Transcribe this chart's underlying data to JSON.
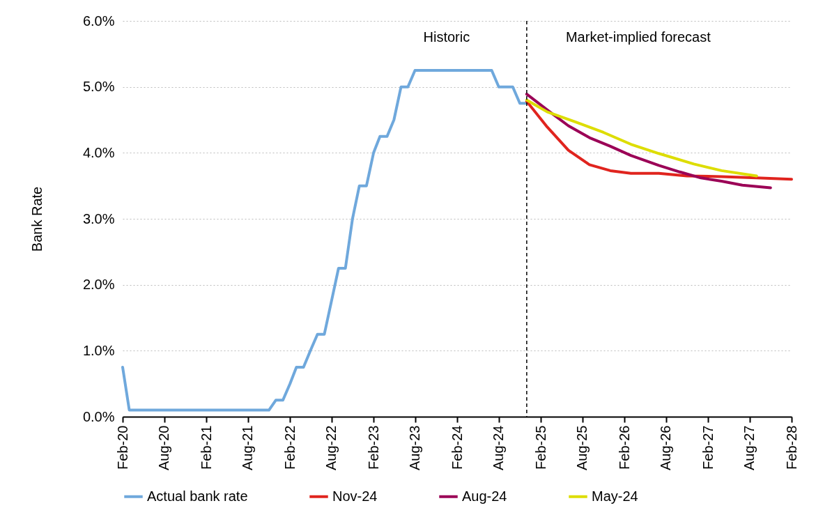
{
  "chart_data": {
    "type": "line",
    "ylabel": "Bank Rate",
    "xlim": [
      "2020-02",
      "2028-02"
    ],
    "xticks": [
      {
        "value": "2020-02",
        "label": "Feb-20"
      },
      {
        "value": "2020-08",
        "label": "Aug-20"
      },
      {
        "value": "2021-02",
        "label": "Feb-21"
      },
      {
        "value": "2021-08",
        "label": "Aug-21"
      },
      {
        "value": "2022-02",
        "label": "Feb-22"
      },
      {
        "value": "2022-08",
        "label": "Aug-22"
      },
      {
        "value": "2023-02",
        "label": "Feb-23"
      },
      {
        "value": "2023-08",
        "label": "Aug-23"
      },
      {
        "value": "2024-02",
        "label": "Feb-24"
      },
      {
        "value": "2024-08",
        "label": "Aug-24"
      },
      {
        "value": "2025-02",
        "label": "Feb-25"
      },
      {
        "value": "2025-08",
        "label": "Aug-25"
      },
      {
        "value": "2026-02",
        "label": "Feb-26"
      },
      {
        "value": "2026-08",
        "label": "Aug-26"
      },
      {
        "value": "2027-02",
        "label": "Feb-27"
      },
      {
        "value": "2027-08",
        "label": "Aug-27"
      },
      {
        "value": "2028-02",
        "label": "Feb-28"
      }
    ],
    "ylim": [
      0,
      6
    ],
    "yticks": [
      {
        "value": 0,
        "label": "0.0%"
      },
      {
        "value": 1,
        "label": "1.0%"
      },
      {
        "value": 2,
        "label": "2.0%"
      },
      {
        "value": 3,
        "label": "3.0%"
      },
      {
        "value": 4,
        "label": "4.0%"
      },
      {
        "value": 5,
        "label": "5.0%"
      },
      {
        "value": 6,
        "label": "6.0%"
      }
    ],
    "grid": "y",
    "legend": "bottom",
    "ref_lines": [
      {
        "axis": "x",
        "value": "2024-12",
        "label": null,
        "line_style": "dashed",
        "color": "#000000"
      }
    ],
    "annotations": [
      "Historic",
      "Market-implied forecast"
    ],
    "series": [
      {
        "name": "Actual bank rate",
        "color": "#6fa8dc",
        "x": [
          "2020-02",
          "2020-03",
          "2021-11",
          "2021-12",
          "2022-01",
          "2022-02",
          "2022-03",
          "2022-04",
          "2022-05",
          "2022-06",
          "2022-07",
          "2022-08",
          "2022-09",
          "2022-10",
          "2022-11",
          "2022-12",
          "2023-01",
          "2023-02",
          "2023-03",
          "2023-04",
          "2023-05",
          "2023-06",
          "2023-07",
          "2023-08",
          "2024-07",
          "2024-08",
          "2024-10",
          "2024-11",
          "2024-12"
        ],
        "values": [
          0.75,
          0.1,
          0.1,
          0.25,
          0.25,
          0.5,
          0.75,
          0.75,
          1.0,
          1.25,
          1.25,
          1.75,
          2.25,
          2.25,
          3.0,
          3.5,
          3.5,
          4.0,
          4.25,
          4.25,
          4.5,
          5.0,
          5.0,
          5.25,
          5.25,
          5.0,
          5.0,
          4.75,
          4.75
        ]
      },
      {
        "name": "Nov-24",
        "color": "#e0241e",
        "x": [
          "2024-12",
          "2025-03",
          "2025-06",
          "2025-09",
          "2025-12",
          "2026-03",
          "2026-07",
          "2026-11",
          "2027-04",
          "2027-09",
          "2028-02"
        ],
        "values": [
          4.78,
          4.39,
          4.04,
          3.82,
          3.73,
          3.69,
          3.69,
          3.65,
          3.64,
          3.62,
          3.6
        ]
      },
      {
        "name": "Aug-24",
        "color": "#9b0056",
        "x": [
          "2024-12",
          "2025-03",
          "2025-06",
          "2025-09",
          "2025-12",
          "2026-03",
          "2026-07",
          "2026-10",
          "2027-01",
          "2027-04",
          "2027-07",
          "2027-11"
        ],
        "values": [
          4.89,
          4.65,
          4.41,
          4.23,
          4.1,
          3.96,
          3.81,
          3.71,
          3.62,
          3.57,
          3.51,
          3.47
        ]
      },
      {
        "name": "May-24",
        "color": "#dddd00",
        "x": [
          "2024-12",
          "2025-03",
          "2025-07",
          "2025-11",
          "2026-03",
          "2026-07",
          "2026-12",
          "2027-04",
          "2027-09"
        ],
        "values": [
          4.8,
          4.62,
          4.47,
          4.31,
          4.13,
          3.99,
          3.83,
          3.73,
          3.65
        ]
      }
    ]
  }
}
